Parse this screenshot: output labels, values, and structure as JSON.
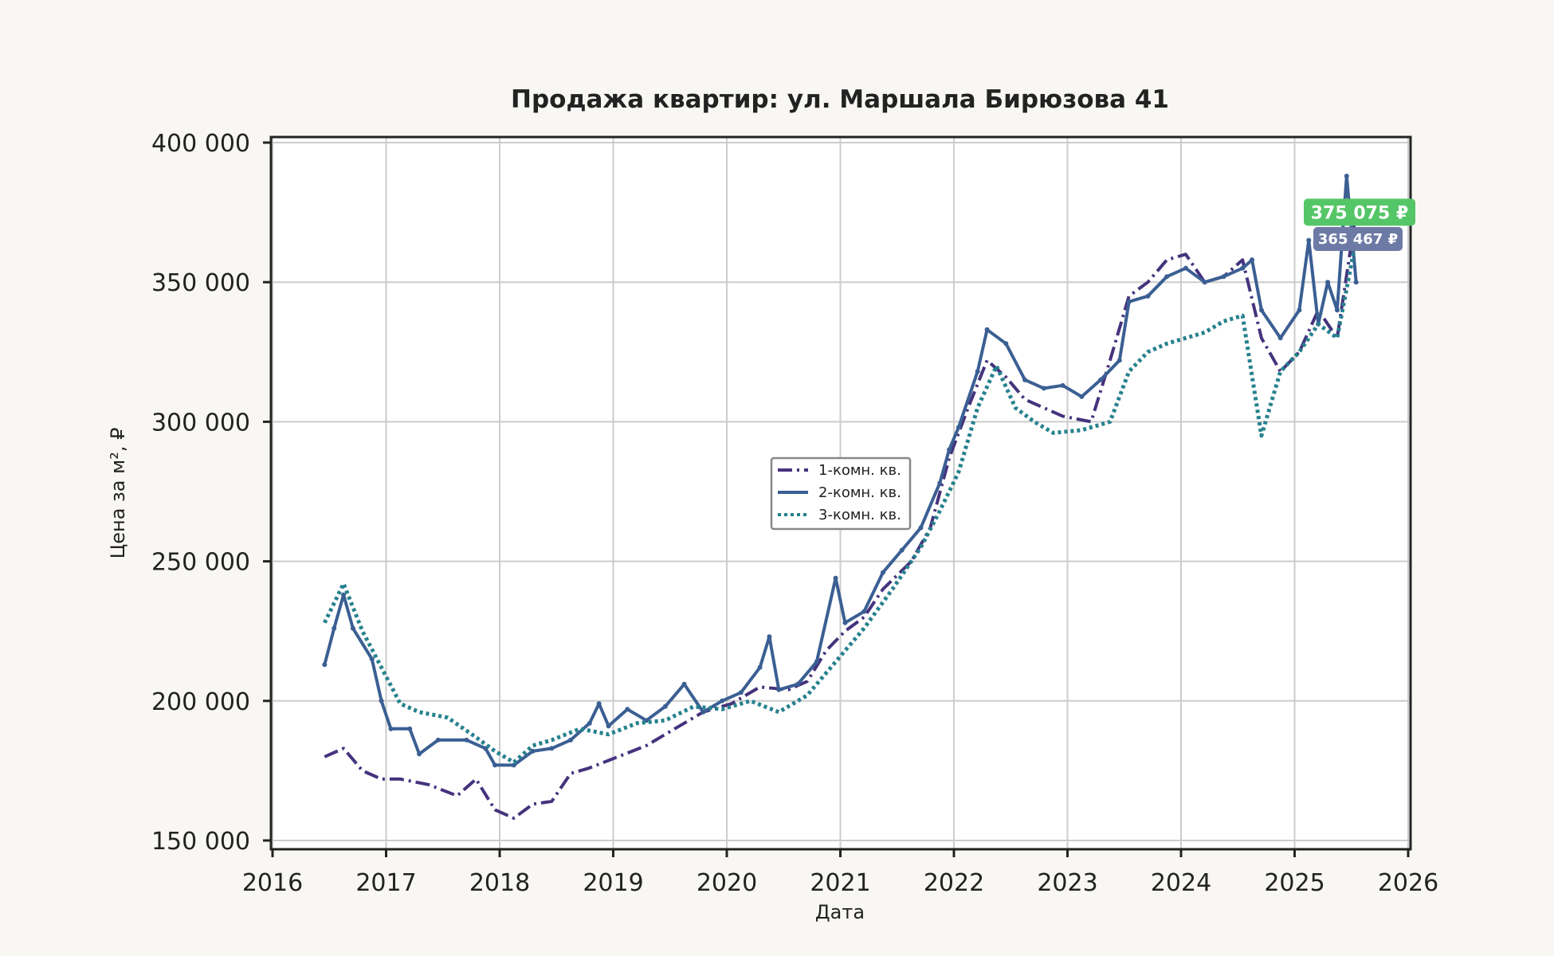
{
  "chart_data": {
    "type": "line",
    "title": "Продажа квартир: ул. Маршала Бирюзова 41",
    "xlabel": "Дата",
    "ylabel": "Цена за м², ₽",
    "xlim": [
      2016,
      2026
    ],
    "ylim": [
      150000,
      400000
    ],
    "x_ticks": [
      "2016",
      "2017",
      "2018",
      "2019",
      "2020",
      "2021",
      "2022",
      "2023",
      "2024",
      "2025",
      "2026"
    ],
    "y_ticks": [
      150000,
      200000,
      250000,
      300000,
      350000,
      400000
    ],
    "y_tick_labels": [
      "150 000",
      "200 000",
      "250 000",
      "300 000",
      "350 000",
      "400 000"
    ],
    "grid": true,
    "legend_placement": "center",
    "annotations": [
      {
        "text": "375 075 ₽",
        "value": 375075,
        "color": "#55c667"
      },
      {
        "text": "365 467 ₽",
        "value": 365467,
        "color": "#6d7aa6"
      }
    ],
    "series": [
      {
        "name": "1-комн. кв.",
        "color": "#45337d",
        "style": "dashdot",
        "x": [
          "2016-06",
          "2016-08",
          "2016-10",
          "2016-12",
          "2017-02",
          "2017-05",
          "2017-08",
          "2017-10",
          "2017-12",
          "2018-02",
          "2018-04",
          "2018-06",
          "2018-08",
          "2018-10",
          "2019-01",
          "2019-04",
          "2019-06",
          "2019-10",
          "2020-01",
          "2020-04",
          "2020-07",
          "2020-09",
          "2020-11",
          "2021-01",
          "2021-03",
          "2021-05",
          "2021-08",
          "2021-10",
          "2021-12",
          "2022-02",
          "2022-04",
          "2022-06",
          "2022-08",
          "2022-10",
          "2022-12",
          "2023-03",
          "2023-05",
          "2023-07",
          "2023-09",
          "2023-11",
          "2024-01",
          "2024-03",
          "2024-05",
          "2024-07",
          "2024-09",
          "2024-11",
          "2025-01",
          "2025-03",
          "2025-05",
          "2025-07"
        ],
        "values": [
          180000,
          183000,
          175000,
          172000,
          172000,
          170000,
          166000,
          172000,
          161000,
          158000,
          163000,
          164000,
          174000,
          176000,
          180000,
          184000,
          188000,
          196000,
          199000,
          205000,
          204000,
          207000,
          218000,
          225000,
          230000,
          240000,
          250000,
          262000,
          287000,
          305000,
          322000,
          316000,
          308000,
          305000,
          302000,
          300000,
          322000,
          345000,
          350000,
          358000,
          360000,
          350000,
          352000,
          358000,
          330000,
          318000,
          325000,
          340000,
          330000,
          375075
        ]
      },
      {
        "name": "2-комн. кв.",
        "color": "#3b5f93",
        "style": "solid-marker",
        "x": [
          "2016-06",
          "2016-07",
          "2016-08",
          "2016-09",
          "2016-11",
          "2016-12",
          "2017-01",
          "2017-03",
          "2017-04",
          "2017-06",
          "2017-09",
          "2017-11",
          "2017-12",
          "2018-02",
          "2018-04",
          "2018-06",
          "2018-08",
          "2018-10",
          "2018-11",
          "2018-12",
          "2019-02",
          "2019-04",
          "2019-06",
          "2019-08",
          "2019-10",
          "2019-12",
          "2020-02",
          "2020-04",
          "2020-05",
          "2020-06",
          "2020-08",
          "2020-10",
          "2020-12",
          "2021-01",
          "2021-03",
          "2021-05",
          "2021-07",
          "2021-09",
          "2021-11",
          "2021-12",
          "2022-01",
          "2022-03",
          "2022-04",
          "2022-06",
          "2022-08",
          "2022-10",
          "2022-12",
          "2023-02",
          "2023-04",
          "2023-06",
          "2023-07",
          "2023-09",
          "2023-11",
          "2024-01",
          "2024-03",
          "2024-05",
          "2024-07",
          "2024-08",
          "2024-09",
          "2024-11",
          "2025-01",
          "2025-02",
          "2025-03",
          "2025-04",
          "2025-05",
          "2025-06",
          "2025-07"
        ],
        "values": [
          213000,
          226000,
          238000,
          226000,
          215000,
          200000,
          190000,
          190000,
          181000,
          186000,
          186000,
          183000,
          177000,
          177000,
          182000,
          183000,
          186000,
          192000,
          199000,
          191000,
          197000,
          193000,
          198000,
          206000,
          196000,
          200000,
          203000,
          212000,
          223000,
          204000,
          206000,
          214000,
          244000,
          228000,
          232000,
          246000,
          254000,
          262000,
          278000,
          290000,
          298000,
          318000,
          333000,
          328000,
          315000,
          312000,
          313000,
          309000,
          315000,
          322000,
          343000,
          345000,
          352000,
          355000,
          350000,
          352000,
          355000,
          358000,
          340000,
          330000,
          340000,
          365000,
          335000,
          350000,
          340000,
          388000,
          350000
        ]
      },
      {
        "name": "3-комн. кв.",
        "color": "#26818e",
        "style": "dotted",
        "x": [
          "2016-06",
          "2016-08",
          "2016-10",
          "2016-12",
          "2017-02",
          "2017-04",
          "2017-07",
          "2017-10",
          "2017-12",
          "2018-02",
          "2018-04",
          "2018-06",
          "2018-09",
          "2018-12",
          "2019-03",
          "2019-06",
          "2019-09",
          "2019-12",
          "2020-03",
          "2020-06",
          "2020-09",
          "2020-12",
          "2021-03",
          "2021-06",
          "2021-09",
          "2021-11",
          "2022-01",
          "2022-03",
          "2022-05",
          "2022-07",
          "2022-09",
          "2022-11",
          "2023-02",
          "2023-05",
          "2023-07",
          "2023-09",
          "2023-11",
          "2024-01",
          "2024-03",
          "2024-05",
          "2024-07",
          "2024-09",
          "2024-11",
          "2025-01",
          "2025-03",
          "2025-05",
          "2025-07"
        ],
        "values": [
          228000,
          242000,
          225000,
          212000,
          199000,
          196000,
          194000,
          187000,
          182000,
          178000,
          184000,
          186000,
          190000,
          188000,
          192000,
          193000,
          198000,
          197000,
          200000,
          196000,
          202000,
          214000,
          226000,
          240000,
          255000,
          268000,
          282000,
          305000,
          320000,
          305000,
          300000,
          296000,
          297000,
          300000,
          318000,
          325000,
          328000,
          330000,
          332000,
          336000,
          338000,
          295000,
          318000,
          325000,
          335000,
          330000,
          365467
        ]
      }
    ]
  }
}
